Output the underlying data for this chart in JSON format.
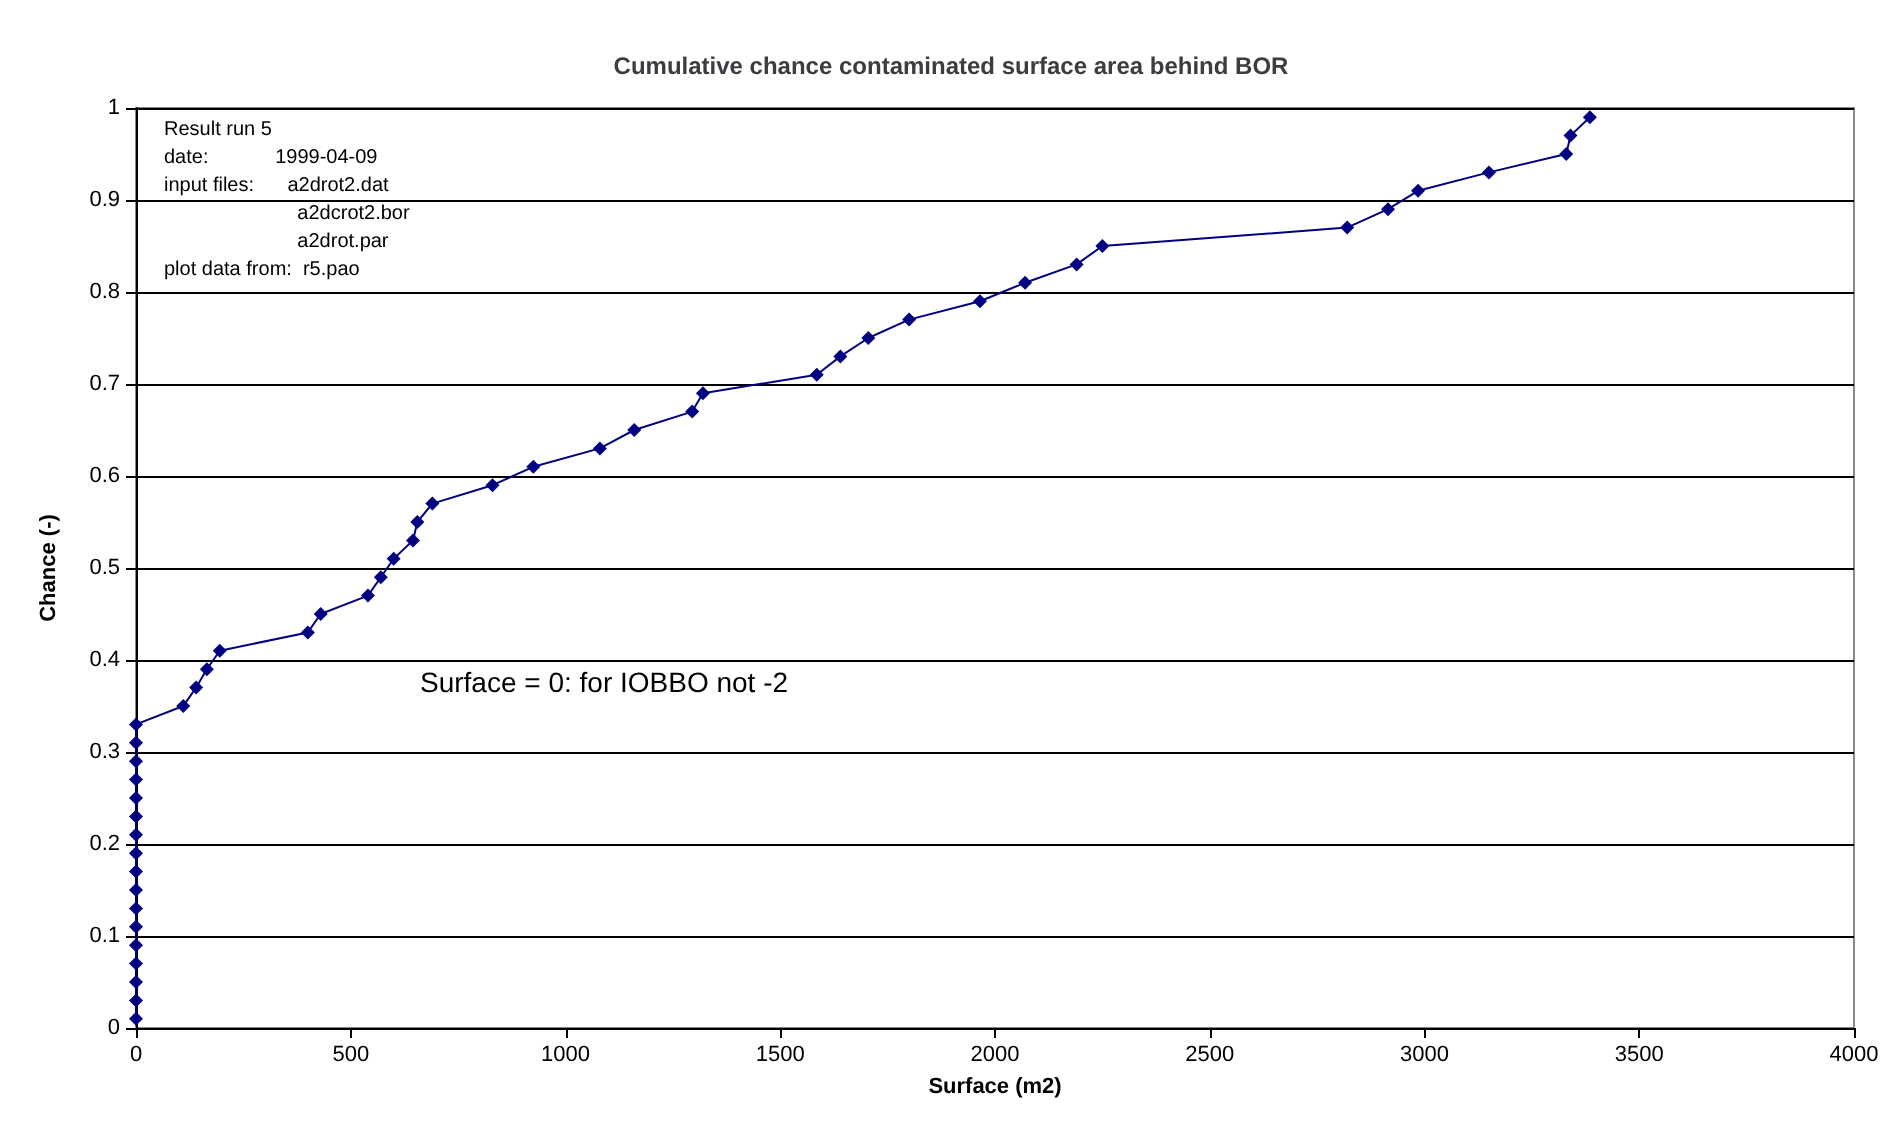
{
  "chart_data": {
    "type": "line",
    "title": "Cumulative chance contaminated surface area behind BOR",
    "xlabel": "Surface (m2)",
    "ylabel": "Chance (-)",
    "x": [
      0,
      0,
      0,
      0,
      0,
      0,
      0,
      0,
      0,
      0,
      0,
      0,
      0,
      0,
      0,
      0,
      0,
      110,
      140,
      165,
      195,
      400,
      430,
      540,
      570,
      600,
      645,
      655,
      690,
      830,
      925,
      1080,
      1160,
      1295,
      1320,
      1585,
      1640,
      1705,
      1800,
      1965,
      2070,
      2190,
      2250,
      2820,
      2915,
      2985,
      3150,
      3330,
      3340,
      3385
    ],
    "series": [
      {
        "color": "#000080",
        "values": [
          0.01,
          0.03,
          0.05,
          0.07,
          0.09,
          0.11,
          0.13,
          0.15,
          0.17,
          0.19,
          0.21,
          0.23,
          0.25,
          0.27,
          0.29,
          0.31,
          0.33,
          0.35,
          0.37,
          0.39,
          0.41,
          0.43,
          0.45,
          0.47,
          0.49,
          0.51,
          0.53,
          0.55,
          0.57,
          0.59,
          0.61,
          0.63,
          0.65,
          0.67,
          0.69,
          0.71,
          0.73,
          0.75,
          0.77,
          0.79,
          0.81,
          0.83,
          0.85,
          0.87,
          0.89,
          0.91,
          0.93,
          0.95,
          0.97,
          0.99
        ]
      }
    ],
    "xlim": [
      0,
      4000
    ],
    "xticks": [
      0,
      500,
      1000,
      1500,
      2000,
      2500,
      3000,
      3500,
      4000
    ],
    "ylim": [
      0,
      1
    ],
    "yticks": [
      0,
      0.1,
      0.2,
      0.3,
      0.4,
      0.5,
      0.6,
      0.7,
      0.8,
      0.9,
      1
    ],
    "grid": "y",
    "marker": "diamond",
    "line_style": "solid",
    "annotations": [
      "Result run 5",
      "date:            1999-04-09",
      "input files:      a2drot2.dat",
      "                        a2dcrot2.bor",
      "                        a2drot.par",
      "plot data from:  r5.pao",
      "Surface = 0: for IOBBO not -2"
    ]
  }
}
